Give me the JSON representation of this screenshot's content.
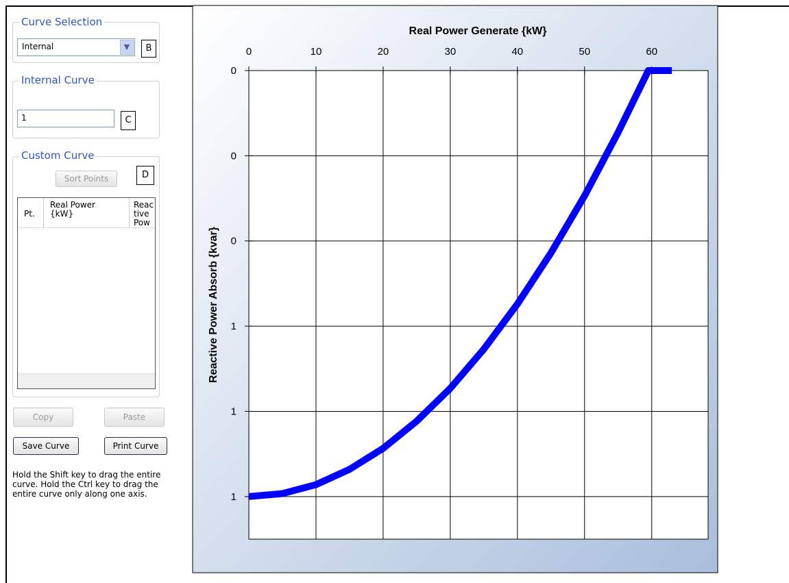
{
  "panel": {
    "curve_selection": {
      "title": "Curve Selection",
      "dropdown": "Internal",
      "marker": "B"
    },
    "internal_curve": {
      "title": "Internal Curve",
      "textbox": "1",
      "marker": "C"
    },
    "custom_curve": {
      "title": "Custom Curve",
      "sort_button": "Sort Points",
      "marker": "D",
      "columns": [
        "Pt.",
        "Real Power {kW}",
        "Reactive Power"
      ]
    },
    "buttons": {
      "copy": "Copy",
      "paste": "Paste",
      "save": "Save Curve",
      "print": "Print Curve"
    },
    "help": "Hold the Shift key to drag the entire curve.  Hold the Ctrl key to drag the entire curve only along one axis."
  },
  "chart_data": {
    "type": "line",
    "xlabel": "Real Power Generate {kW}",
    "ylabel": "Reactive Power Absorb {kvar}",
    "x": [
      0,
      5,
      10,
      15,
      20,
      25,
      30,
      35,
      40,
      45,
      50,
      55,
      59.5,
      63
    ],
    "values": [
      1.0,
      0.993,
      0.972,
      0.936,
      0.887,
      0.823,
      0.746,
      0.654,
      0.548,
      0.428,
      0.294,
      0.145,
      0,
      0
    ],
    "color": "#0000ff",
    "xlim": [
      0,
      68.4
    ],
    "xticks": [
      0,
      10,
      20,
      30,
      40,
      50,
      60
    ],
    "ylim": [
      0,
      1.1
    ],
    "y_reversed": true,
    "yticks": [
      0,
      {
        "value": 0.2,
        "label": "0"
      },
      {
        "value": 0.4,
        "label": "0"
      },
      {
        "value": 0.6,
        "label": "1"
      },
      {
        "value": 0.8,
        "label": "1"
      },
      {
        "value": 1.0,
        "label": "1"
      }
    ],
    "grid": true
  }
}
